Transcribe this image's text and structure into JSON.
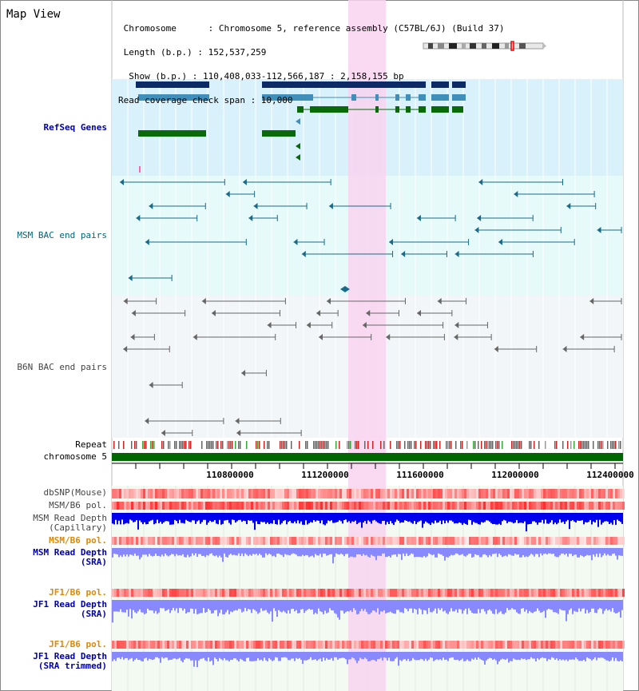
{
  "view": {
    "title": "Map View",
    "info_lines": [
      " Chromosome      : Chromosome 5, reference assembly (C57BL/6J) (Build 37)",
      " Length (b.p.) : 152,537,259",
      "  Show (b.p.) : 110,408,033-112,566,187 : 2,158,155 bp",
      "Read coverage check span : 10,000"
    ]
  },
  "tracks": {
    "refseq": "RefSeq Genes",
    "msm_bac": "MSM BAC end pairs",
    "b6n_bac": "B6N BAC end pairs",
    "repeat": "Repeat",
    "chromosome": "chromosome 5",
    "dbsnp": "dbSNP(Mouse)",
    "msm_b6_pol_1": "MSM/B6 pol.",
    "msm_depth_cap_1": "MSM Read Depth",
    "msm_depth_cap_2": "(Capillary)",
    "msm_b6_pol_2": "MSM/B6 pol.",
    "msm_depth_sra_1": "MSM Read Depth",
    "msm_depth_sra_2": "(SRA)",
    "jf1_b6_pol_1": "JF1/B6 pol.",
    "jf1_depth_sra_1": "JF1 Read Depth",
    "jf1_depth_sra_2": "(SRA)",
    "jf1_b6_pol_2": "JF1/B6 pol.",
    "jf1_depth_trim_1": "JF1 Read Depth",
    "jf1_depth_trim_2": "(SRA trimmed)"
  },
  "ruler": {
    "ticks": [
      "110800000",
      "111200000",
      "111600000",
      "112000000",
      "112400000"
    ]
  },
  "colors": {
    "refseq_bg": "#d9f1fb",
    "msm_bg": "#e6fafa",
    "b6n_bg": "#f3f6f8",
    "highlight": "#f8d4f0",
    "chromosome_bar": "#006600",
    "depth_dark": "#0000ee",
    "depth_light": "#8888ff",
    "pol_red": "#ff4444"
  }
}
